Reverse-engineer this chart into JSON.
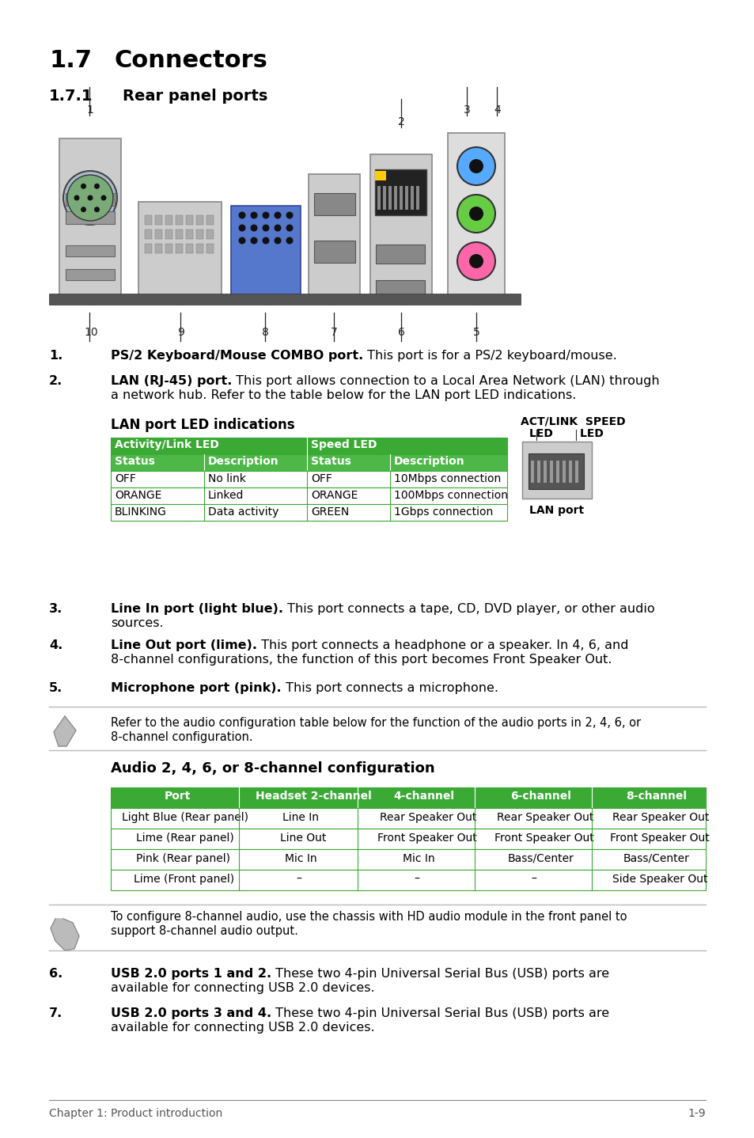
{
  "title_1": "1.7",
  "title_1_text": "Connectors",
  "title_2": "1.7.1",
  "title_2_text": "Rear panel ports",
  "bg_color": "#ffffff",
  "green_header": "#3aaa35",
  "green_row": "#4db848",
  "table_border": "#3aaa35",
  "lan_table_subheaders": [
    "Status",
    "Description",
    "Status",
    "Description"
  ],
  "lan_table_rows": [
    [
      "OFF",
      "No link",
      "OFF",
      "10Mbps connection"
    ],
    [
      "ORANGE",
      "Linked",
      "ORANGE",
      "100Mbps connection"
    ],
    [
      "BLINKING",
      "Data activity",
      "GREEN",
      "1Gbps connection"
    ]
  ],
  "audio_table_headers": [
    "Port",
    "Headset 2-channel",
    "4-channel",
    "6-channel",
    "8-channel"
  ],
  "audio_table_rows": [
    [
      "Light Blue (Rear panel)",
      "Line In",
      "Rear Speaker Out",
      "Rear Speaker Out",
      "Rear Speaker Out"
    ],
    [
      "Lime (Rear panel)",
      "Line Out",
      "Front Speaker Out",
      "Front Speaker Out",
      "Front Speaker Out"
    ],
    [
      "Pink (Rear panel)",
      "Mic In",
      "Mic In",
      "Bass/Center",
      "Bass/Center"
    ],
    [
      "Lime (Front panel)",
      "–",
      "–",
      "–",
      "Side Speaker Out"
    ]
  ],
  "footer_left": "Chapter 1: Product introduction",
  "footer_right": "1-9"
}
